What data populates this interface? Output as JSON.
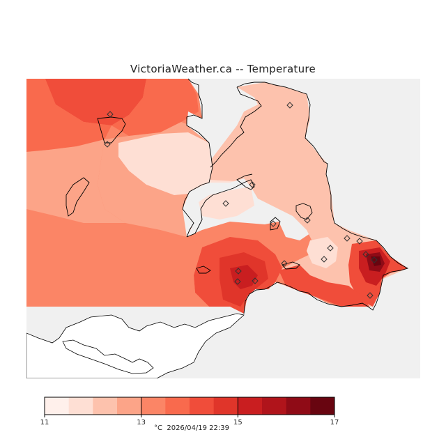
{
  "title": "VictoriaWeather.ca -- Temperature",
  "legend": {
    "unit": "°C",
    "timestamp": "2026/04/19 22:39",
    "ticks": [
      "11",
      "13",
      "15",
      "17"
    ],
    "colors": [
      "#fff0eb",
      "#fedfd4",
      "#fdc2ad",
      "#fca488",
      "#fb8566",
      "#f96a4d",
      "#f04d3a",
      "#e0352a",
      "#c91e20",
      "#b0141b",
      "#8f0b16",
      "#680510"
    ]
  },
  "colors": {
    "background_panel": "#f0f0f0",
    "coastline": "#000000",
    "station_marker": "#333333"
  },
  "map_data": {
    "variable": "Temperature",
    "range_celsius": [
      11,
      17
    ],
    "stations_shown": 18
  }
}
